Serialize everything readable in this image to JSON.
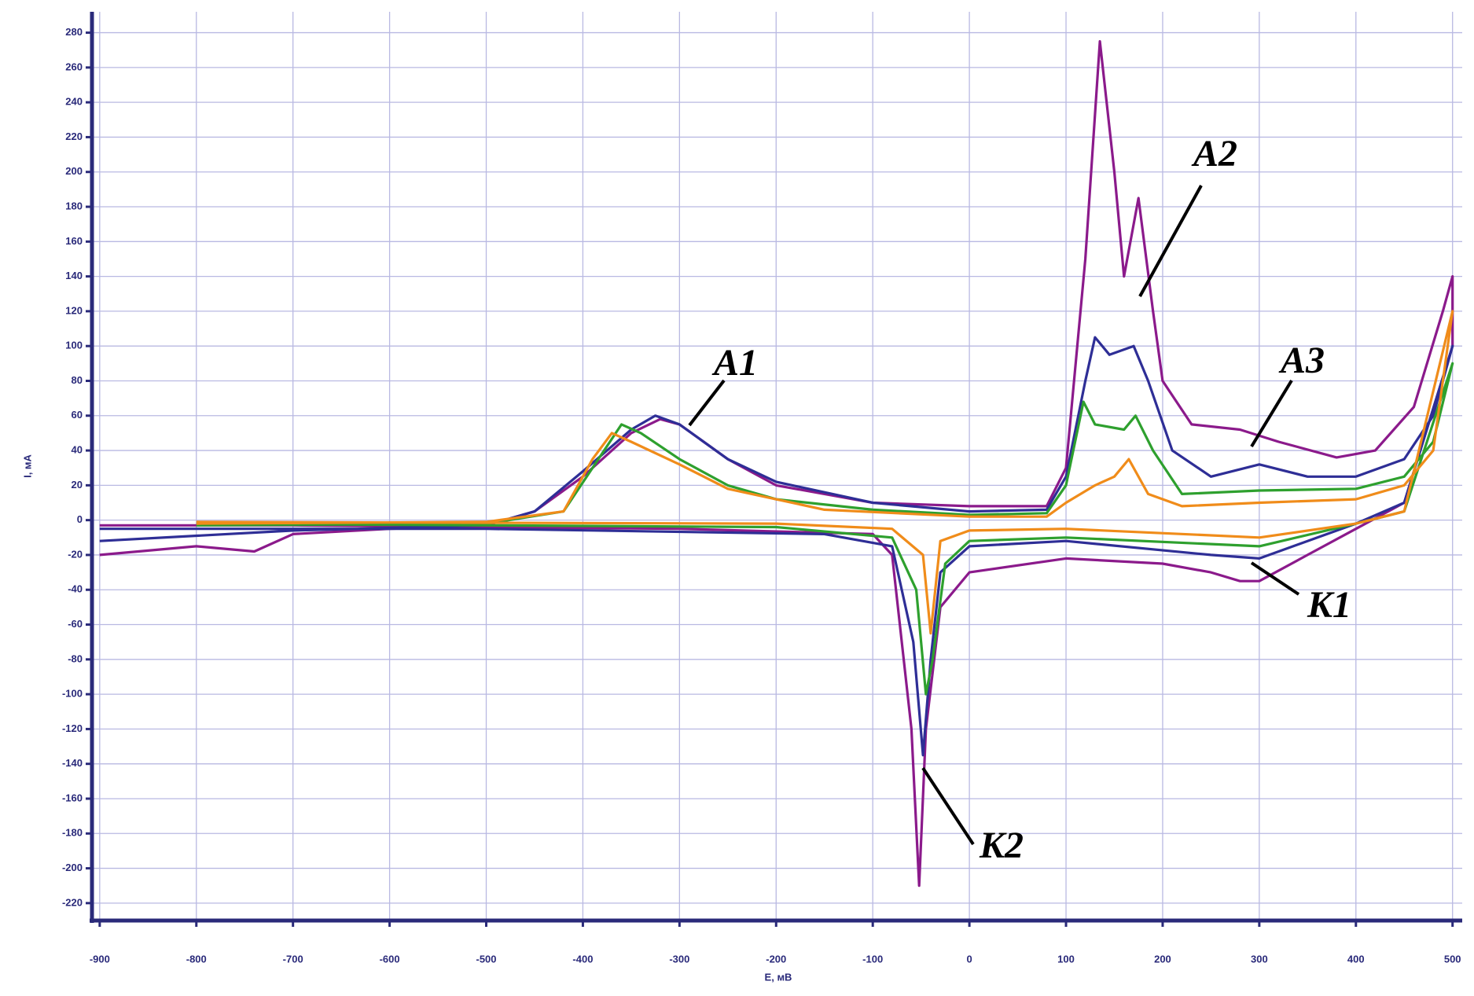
{
  "chart_data": {
    "type": "line",
    "x_label": "E, мВ",
    "y_label": "I, мА",
    "xlim": [
      -908,
      510
    ],
    "ylim": [
      -230,
      292
    ],
    "xticks": [
      -900,
      -800,
      -700,
      -600,
      -500,
      -400,
      -300,
      -200,
      -100,
      0,
      100,
      200,
      300,
      400,
      500
    ],
    "yticks": [
      -220,
      -200,
      -180,
      -160,
      -140,
      -120,
      -100,
      -80,
      -60,
      -40,
      -20,
      0,
      20,
      40,
      60,
      80,
      100,
      120,
      140,
      160,
      180,
      200,
      220,
      240,
      260,
      280
    ],
    "grid": true,
    "annotations": [
      "A1",
      "A2",
      "A3",
      "K1",
      "K2"
    ],
    "series": [
      {
        "color": "#8b1a8b",
        "x": [
          -900,
          -800,
          -740,
          -700,
          -600,
          -500,
          -450,
          -400,
          -350,
          -320,
          -300,
          -250,
          -200,
          -100,
          0,
          80,
          100,
          120,
          135,
          150,
          160,
          175,
          190,
          200,
          230,
          280,
          320,
          380,
          420,
          460,
          490,
          500,
          500,
          450,
          400,
          350,
          300,
          280,
          250,
          200,
          100,
          0,
          -30,
          -45,
          -52,
          -60,
          -80,
          -100,
          -300,
          -500,
          -700,
          -900
        ],
        "values": [
          -20,
          -15,
          -18,
          -8,
          -5,
          -3,
          5,
          25,
          50,
          58,
          55,
          35,
          20,
          10,
          8,
          8,
          30,
          150,
          275,
          200,
          140,
          185,
          120,
          80,
          55,
          52,
          45,
          36,
          40,
          65,
          120,
          140,
          100,
          10,
          -5,
          -20,
          -35,
          -35,
          -30,
          -25,
          -22,
          -30,
          -50,
          -120,
          -210,
          -120,
          -20,
          -8,
          -5,
          -4,
          -3,
          -3
        ]
      },
      {
        "color": "#2e2e96",
        "x": [
          -900,
          -700,
          -500,
          -450,
          -400,
          -350,
          -325,
          -300,
          -250,
          -200,
          -100,
          0,
          80,
          100,
          120,
          130,
          145,
          170,
          185,
          210,
          250,
          300,
          350,
          400,
          450,
          480,
          500,
          450,
          400,
          300,
          250,
          100,
          0,
          -30,
          -40,
          -48,
          -58,
          -80,
          -150,
          -500,
          -900
        ],
        "values": [
          -12,
          -6,
          -3,
          5,
          28,
          52,
          60,
          55,
          35,
          22,
          10,
          5,
          6,
          25,
          80,
          105,
          95,
          100,
          80,
          40,
          25,
          32,
          25,
          25,
          35,
          60,
          100,
          10,
          -2,
          -22,
          -20,
          -12,
          -15,
          -30,
          -80,
          -135,
          -70,
          -15,
          -8,
          -5,
          -5
        ]
      },
      {
        "color": "#2ea02e",
        "x": [
          -800,
          -500,
          -420,
          -390,
          -360,
          -340,
          -300,
          -250,
          -200,
          -100,
          0,
          80,
          100,
          118,
          130,
          160,
          172,
          190,
          220,
          300,
          400,
          450,
          480,
          500,
          450,
          400,
          300,
          100,
          0,
          -25,
          -38,
          -45,
          -55,
          -80,
          -200,
          -800
        ],
        "values": [
          -3,
          -2,
          5,
          30,
          55,
          50,
          35,
          20,
          12,
          6,
          3,
          4,
          20,
          68,
          55,
          52,
          60,
          40,
          15,
          17,
          18,
          25,
          45,
          90,
          5,
          -2,
          -15,
          -10,
          -12,
          -25,
          -80,
          -100,
          -40,
          -10,
          -4,
          -2
        ]
      },
      {
        "color": "#f08c1a",
        "x": [
          -800,
          -500,
          -420,
          -390,
          -370,
          -350,
          -300,
          -250,
          -150,
          0,
          80,
          100,
          130,
          150,
          165,
          185,
          220,
          300,
          400,
          450,
          480,
          500,
          450,
          400,
          300,
          100,
          0,
          -30,
          -40,
          -48,
          -80,
          -200,
          -800
        ],
        "values": [
          -2,
          -1,
          5,
          35,
          50,
          45,
          32,
          18,
          6,
          2,
          2,
          10,
          20,
          25,
          35,
          15,
          8,
          10,
          12,
          20,
          40,
          120,
          5,
          -2,
          -10,
          -5,
          -6,
          -12,
          -65,
          -20,
          -5,
          -2,
          -1
        ]
      }
    ]
  }
}
